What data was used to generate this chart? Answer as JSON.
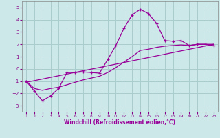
{
  "xlabel": "Windchill (Refroidissement éolien,°C)",
  "background_color": "#cce8e8",
  "grid_color": "#aacccc",
  "line_color": "#990099",
  "xlim": [
    -0.5,
    23.5
  ],
  "ylim": [
    -3.5,
    5.5
  ],
  "xticks": [
    0,
    1,
    2,
    3,
    4,
    5,
    6,
    7,
    8,
    9,
    10,
    11,
    12,
    13,
    14,
    15,
    16,
    17,
    18,
    19,
    20,
    21,
    22,
    23
  ],
  "yticks": [
    -3,
    -2,
    -1,
    0,
    1,
    2,
    3,
    4,
    5
  ],
  "curve1_x": [
    0,
    1,
    2,
    3,
    4,
    5,
    6,
    7,
    8,
    9,
    10,
    11,
    12,
    13,
    14,
    15,
    16,
    17,
    18,
    19,
    20,
    21,
    22,
    23
  ],
  "curve1_y": [
    -1.0,
    -1.8,
    -2.6,
    -2.2,
    -1.6,
    -0.3,
    -0.3,
    -0.25,
    -0.3,
    -0.35,
    0.75,
    1.9,
    3.3,
    4.4,
    4.85,
    4.5,
    3.7,
    2.3,
    2.25,
    2.3,
    1.9,
    2.0,
    2.0,
    1.9
  ],
  "curve2_x": [
    0,
    23
  ],
  "curve2_y": [
    -1.1,
    2.0
  ],
  "curve3_x": [
    0,
    1,
    2,
    3,
    4,
    5,
    6,
    7,
    8,
    9,
    10,
    11,
    12,
    13,
    14,
    15,
    16,
    17,
    18,
    19,
    20,
    21,
    22,
    23
  ],
  "curve3_y": [
    -1.0,
    -1.6,
    -1.75,
    -1.6,
    -1.5,
    -1.3,
    -1.1,
    -0.9,
    -0.75,
    -0.6,
    -0.3,
    0.1,
    0.55,
    1.0,
    1.5,
    1.6,
    1.75,
    1.85,
    1.9,
    1.95,
    1.9,
    2.0,
    2.0,
    2.0
  ]
}
